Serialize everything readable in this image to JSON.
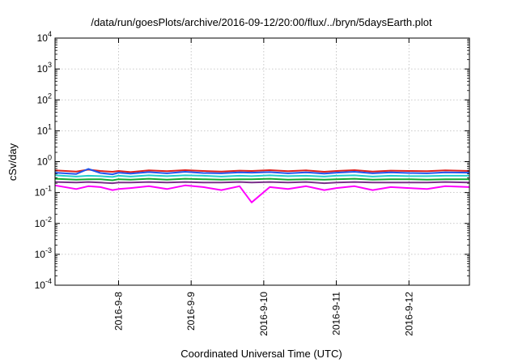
{
  "chart_data": {
    "type": "line",
    "title": "/data/run/goesPlots/archive/2016-09-12/20:00/flux/../bryn/5daysEarth.plot",
    "xlabel": "Coordinated Universal Time (UTC)",
    "ylabel": "cSv/day",
    "yscale": "log",
    "ylim": [
      0.0001,
      10000
    ],
    "xlim": [
      "2016-09-07 03:00",
      "2016-09-12 20:00"
    ],
    "grid": true,
    "legend": "none",
    "x_ticks": [
      {
        "date": "2016-09-08",
        "label": "2016-9-8"
      },
      {
        "date": "2016-09-09",
        "label": "2016-9-9"
      },
      {
        "date": "2016-09-10",
        "label": "2016-9-10"
      },
      {
        "date": "2016-09-11",
        "label": "2016-9-11"
      },
      {
        "date": "2016-09-12",
        "label": "2016-9-12"
      }
    ],
    "y_ticks": [
      {
        "value": 0.0001,
        "base": "10",
        "exp": "-4"
      },
      {
        "value": 0.001,
        "base": "10",
        "exp": "-3"
      },
      {
        "value": 0.01,
        "base": "10",
        "exp": "-2"
      },
      {
        "value": 0.1,
        "base": "10",
        "exp": "-1"
      },
      {
        "value": 1,
        "base": "10",
        "exp": "0"
      },
      {
        "value": 10,
        "base": "10",
        "exp": "1"
      },
      {
        "value": 100,
        "base": "10",
        "exp": "2"
      },
      {
        "value": 1000,
        "base": "10",
        "exp": "3"
      },
      {
        "value": 10000,
        "base": "10",
        "exp": "4"
      }
    ],
    "x": [
      "2016-09-07 03:00",
      "2016-09-07 10:00",
      "2016-09-07 14:00",
      "2016-09-07 18:00",
      "2016-09-07 22:00",
      "2016-09-08 00:00",
      "2016-09-08 04:00",
      "2016-09-08 10:00",
      "2016-09-08 16:00",
      "2016-09-08 22:00",
      "2016-09-09 04:00",
      "2016-09-09 10:00",
      "2016-09-09 16:00",
      "2016-09-09 20:00",
      "2016-09-10 02:00",
      "2016-09-10 08:00",
      "2016-09-10 14:00",
      "2016-09-10 20:00",
      "2016-09-11 00:00",
      "2016-09-11 06:00",
      "2016-09-11 12:00",
      "2016-09-11 18:00",
      "2016-09-12 00:00",
      "2016-09-12 06:00",
      "2016-09-12 12:00",
      "2016-09-12 20:00"
    ],
    "series": [
      {
        "color": "#e0201c",
        "values": [
          0.52,
          0.48,
          0.55,
          0.5,
          0.47,
          0.5,
          0.46,
          0.52,
          0.49,
          0.53,
          0.5,
          0.48,
          0.51,
          0.5,
          0.53,
          0.49,
          0.52,
          0.47,
          0.5,
          0.53,
          0.48,
          0.51,
          0.5,
          0.49,
          0.52,
          0.5
        ]
      },
      {
        "color": "#2255ee",
        "values": [
          0.44,
          0.4,
          0.58,
          0.43,
          0.39,
          0.44,
          0.41,
          0.46,
          0.42,
          0.47,
          0.43,
          0.42,
          0.45,
          0.44,
          0.46,
          0.42,
          0.45,
          0.41,
          0.44,
          0.47,
          0.42,
          0.45,
          0.43,
          0.42,
          0.45,
          0.44
        ]
      },
      {
        "color": "#22cccc",
        "values": [
          0.36,
          0.33,
          0.35,
          0.34,
          0.32,
          0.35,
          0.33,
          0.36,
          0.34,
          0.36,
          0.35,
          0.33,
          0.35,
          0.34,
          0.36,
          0.34,
          0.35,
          0.33,
          0.35,
          0.36,
          0.33,
          0.35,
          0.34,
          0.34,
          0.35,
          0.35
        ]
      },
      {
        "color": "#11aa33",
        "values": [
          0.28,
          0.26,
          0.27,
          0.27,
          0.25,
          0.27,
          0.26,
          0.28,
          0.26,
          0.28,
          0.27,
          0.26,
          0.27,
          0.27,
          0.28,
          0.26,
          0.27,
          0.26,
          0.27,
          0.28,
          0.26,
          0.27,
          0.27,
          0.26,
          0.27,
          0.27
        ]
      },
      {
        "color": "#7a2f8a",
        "values": [
          0.22,
          0.21,
          0.22,
          0.21,
          0.2,
          0.21,
          0.21,
          0.22,
          0.21,
          0.22,
          0.21,
          0.21,
          0.22,
          0.21,
          0.22,
          0.21,
          0.22,
          0.2,
          0.21,
          0.22,
          0.21,
          0.21,
          0.21,
          0.21,
          0.22,
          0.21
        ]
      },
      {
        "color": "#ff00ff",
        "values": [
          0.17,
          0.13,
          0.16,
          0.15,
          0.12,
          0.13,
          0.14,
          0.16,
          0.13,
          0.17,
          0.15,
          0.12,
          0.16,
          0.048,
          0.15,
          0.13,
          0.16,
          0.12,
          0.14,
          0.16,
          0.12,
          0.15,
          0.14,
          0.13,
          0.16,
          0.15
        ]
      }
    ]
  }
}
